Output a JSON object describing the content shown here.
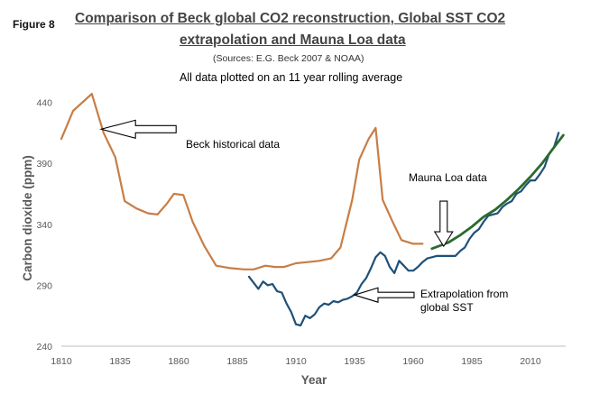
{
  "figure_label": "Figure 8",
  "chart_data": {
    "type": "line",
    "title": "Comparison of Beck global CO2 reconstruction, Global SST CO2 extrapolation and Mauna Loa data",
    "title_lines": [
      "Comparison of Beck global CO2 reconstruction, Global SST CO2",
      "extrapolation and Mauna Loa data"
    ],
    "sources": "(Sources: E.G. Beck  2007 & NOAA)",
    "subtitle": "All data plotted on an 11 year rolling average",
    "xlabel": "Year",
    "ylabel": "Carbon dioxide (ppm)",
    "xlim": [
      1810,
      2025
    ],
    "ylim": [
      240,
      450
    ],
    "x_ticks": [
      "1810",
      "1835",
      "1860",
      "1885",
      "1910",
      "1935",
      "1960",
      "1985",
      "2010"
    ],
    "x_tick_values": [
      1810,
      1835,
      1860,
      1885,
      1910,
      1935,
      1960,
      1985,
      2010
    ],
    "y_ticks": [
      "440",
      "390",
      "340",
      "290",
      "240"
    ],
    "y_tick_values": [
      440,
      390,
      340,
      290,
      240
    ],
    "grid": false,
    "legend": "none",
    "series": [
      {
        "key": "beck",
        "color": "#c87d45",
        "x": [
          1810,
          1815,
          1823,
          1828,
          1833,
          1837,
          1842,
          1847,
          1851,
          1855,
          1858,
          1862,
          1866,
          1871,
          1876,
          1882,
          1888,
          1892,
          1897,
          1901,
          1905,
          1910,
          1915,
          1920,
          1925,
          1929,
          1934,
          1937,
          1941,
          1944,
          1947,
          1951,
          1955,
          1960,
          1964
        ],
        "values": [
          410,
          433,
          447,
          415,
          395,
          359,
          353,
          349,
          348,
          357,
          365,
          364,
          342,
          322,
          306,
          304,
          303,
          303,
          306,
          305,
          305,
          308,
          309,
          310,
          312,
          321,
          360,
          393,
          410,
          419,
          360,
          343,
          327,
          324,
          324
        ]
      },
      {
        "key": "sst",
        "color": "#1f5078",
        "x": [
          1890,
          1892,
          1894,
          1896,
          1898,
          1900,
          1902,
          1904,
          1906,
          1908,
          1910,
          1912,
          1914,
          1916,
          1918,
          1920,
          1922,
          1924,
          1926,
          1928,
          1930,
          1932,
          1934,
          1936,
          1938,
          1940,
          1942,
          1944,
          1946,
          1948,
          1950,
          1952,
          1954,
          1956,
          1958,
          1960,
          1962,
          1964,
          1966,
          1968,
          1970,
          1972,
          1974,
          1976,
          1978,
          1980,
          1982,
          1984,
          1986,
          1988,
          1990,
          1992,
          1994,
          1996,
          1998,
          2000,
          2002,
          2004,
          2006,
          2008,
          2010,
          2012,
          2014,
          2016,
          2018,
          2020,
          2022
        ],
        "values": [
          297,
          292,
          287,
          293,
          290,
          291,
          285,
          284,
          275,
          268,
          258,
          257,
          265,
          263,
          266,
          272,
          275,
          274,
          277,
          276,
          278,
          279,
          281,
          284,
          291,
          296,
          304,
          313,
          317,
          314,
          305,
          300,
          310,
          306,
          302,
          302,
          305,
          309,
          312,
          313,
          314,
          314,
          314,
          314,
          314,
          318,
          321,
          328,
          333,
          336,
          342,
          347,
          348,
          349,
          354,
          357,
          359,
          365,
          367,
          372,
          376,
          376,
          381,
          387,
          398,
          403,
          415
        ]
      },
      {
        "key": "mauna",
        "color": "#2a6b2e",
        "x": [
          1968,
          1975,
          1980,
          1985,
          1990,
          1995,
          2000,
          2005,
          2010,
          2015,
          2020,
          2024
        ],
        "values": [
          320,
          325,
          331,
          338,
          346,
          352,
          360,
          369,
          379,
          390,
          403,
          413
        ]
      }
    ],
    "annotations": [
      {
        "key": "beck-note",
        "lines": [
          "Beck historical data"
        ],
        "target": [
          1827,
          418
        ]
      },
      {
        "key": "mauna-note",
        "lines": [
          "Mauna Loa data"
        ],
        "target": [
          1973,
          322
        ]
      },
      {
        "key": "sst-note",
        "lines": [
          "Extrapolation from",
          "global SST"
        ],
        "target": [
          1935,
          282
        ]
      }
    ]
  }
}
